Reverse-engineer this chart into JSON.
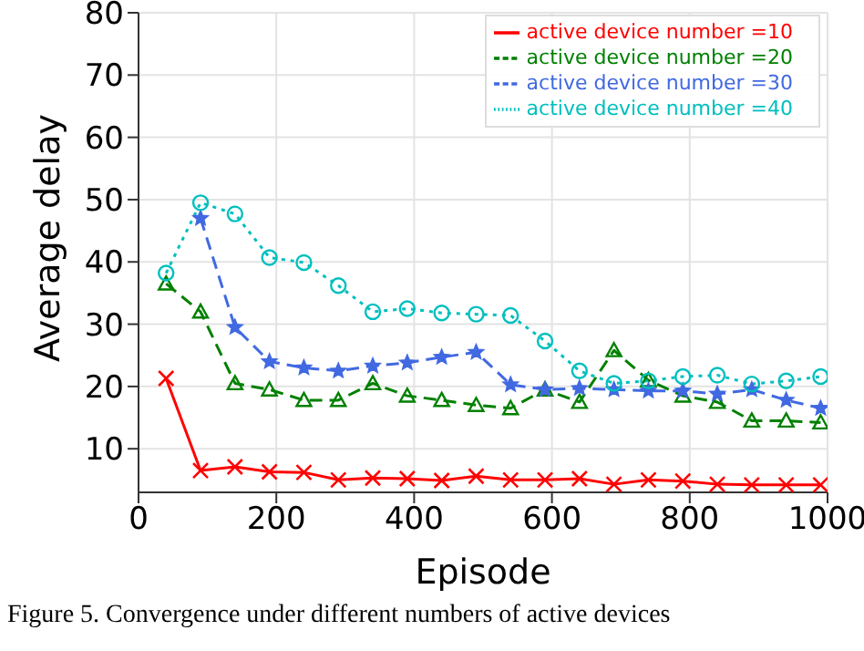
{
  "chart_data": {
    "type": "line",
    "xlabel": "Episode",
    "ylabel": "Average delay",
    "x": [
      40,
      90,
      140,
      190,
      240,
      290,
      340,
      390,
      440,
      490,
      540,
      590,
      640,
      690,
      740,
      790,
      840,
      890,
      940,
      990
    ],
    "series": [
      {
        "name": "active device number =10",
        "color": "#ff0000",
        "marker": "cross",
        "line_style": "solid",
        "values": [
          21.3,
          6.5,
          7.1,
          6.3,
          6.2,
          5.0,
          5.3,
          5.2,
          4.9,
          5.6,
          5.0,
          5.0,
          5.2,
          4.3,
          5.0,
          4.8,
          4.3,
          4.2,
          4.2,
          4.2
        ]
      },
      {
        "name": "active device number =20",
        "color": "#008000",
        "marker": "triangle",
        "line_style": "dashed",
        "values": [
          36.5,
          32.0,
          20.5,
          19.5,
          17.8,
          17.8,
          20.5,
          18.5,
          17.8,
          17.0,
          16.5,
          19.5,
          17.5,
          25.8,
          21.0,
          18.5,
          17.5,
          14.5,
          14.5,
          14.2
        ]
      },
      {
        "name": "active device number =30",
        "color": "#4169e1",
        "marker": "star",
        "line_style": "dashed",
        "values": [
          null,
          47.0,
          29.5,
          24.0,
          23.0,
          22.5,
          23.3,
          23.8,
          24.7,
          25.5,
          20.3,
          19.5,
          19.7,
          19.5,
          19.3,
          19.3,
          18.8,
          19.5,
          17.8,
          16.5
        ]
      },
      {
        "name": "active device number =40",
        "color": "#00bfbf",
        "marker": "circle",
        "line_style": "dotted",
        "values": [
          38.2,
          49.5,
          47.7,
          40.7,
          39.9,
          36.2,
          32.0,
          32.5,
          31.8,
          31.6,
          31.4,
          27.3,
          22.5,
          20.5,
          20.9,
          21.6,
          21.8,
          20.4,
          20.9,
          21.6
        ]
      }
    ],
    "xlim": [
      0,
      1000
    ],
    "xticks": [
      0,
      200,
      400,
      600,
      800,
      1000
    ],
    "ylim": [
      3,
      80
    ],
    "yticks": [
      10,
      20,
      30,
      40,
      50,
      60,
      70,
      80
    ],
    "grid": true,
    "legend": "top right",
    "annotations": [
      "Figure 5. Convergence under different numbers of active devices"
    ]
  }
}
